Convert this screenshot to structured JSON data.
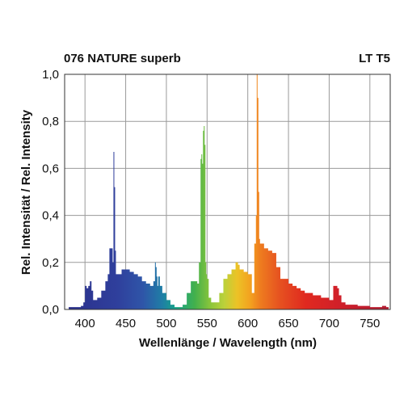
{
  "chart_data": {
    "type": "area",
    "title": "076 NATURE superb",
    "subtitle": "LT T5",
    "xlabel": "Wellenlänge / Wavelength (nm)",
    "ylabel": "Rel. Intensität / Rel. Intensity",
    "xlim": [
      375,
      775
    ],
    "ylim": [
      0,
      1.0
    ],
    "grid": true,
    "x_ticks": [
      400,
      450,
      500,
      550,
      600,
      650,
      700,
      750
    ],
    "y_ticks": [
      0,
      0.2,
      0.4,
      0.6,
      0.8,
      1.0
    ],
    "y_tick_labels": [
      "0,0",
      "0,2",
      "0,4",
      "0,6",
      "0,8",
      "1,0"
    ],
    "series": [
      {
        "x": [
          380,
          385,
          390,
          395,
          398,
          400,
          402,
          404,
          406,
          408,
          410,
          415,
          420,
          425,
          428,
          430,
          432,
          434,
          435,
          436,
          437,
          438,
          440,
          445,
          450,
          455,
          460,
          465,
          470,
          475,
          480,
          484,
          486,
          487,
          488,
          489,
          490,
          492,
          495,
          500,
          505,
          510,
          515,
          520,
          525,
          530,
          535,
          538,
          540,
          542,
          543,
          544,
          545,
          546,
          547,
          548,
          549,
          550,
          552,
          555,
          560,
          565,
          570,
          575,
          580,
          585,
          588,
          590,
          595,
          600,
          605,
          608,
          610,
          611,
          612,
          613,
          614,
          615,
          620,
          625,
          630,
          635,
          640,
          645,
          650,
          655,
          660,
          665,
          670,
          675,
          680,
          685,
          690,
          695,
          700,
          705,
          708,
          710,
          712,
          715,
          720,
          725,
          730,
          735,
          740,
          745,
          750,
          755,
          760,
          765,
          770
        ],
        "y": [
          0.01,
          0.01,
          0.01,
          0.015,
          0.03,
          0.1,
          0.09,
          0.1,
          0.12,
          0.08,
          0.04,
          0.05,
          0.08,
          0.12,
          0.15,
          0.26,
          0.26,
          0.2,
          0.67,
          0.52,
          0.25,
          0.15,
          0.15,
          0.17,
          0.17,
          0.16,
          0.15,
          0.14,
          0.12,
          0.11,
          0.1,
          0.12,
          0.2,
          0.18,
          0.14,
          0.1,
          0.14,
          0.1,
          0.07,
          0.04,
          0.02,
          0.01,
          0.01,
          0.02,
          0.07,
          0.12,
          0.12,
          0.11,
          0.2,
          0.64,
          0.66,
          0.62,
          0.76,
          0.78,
          0.7,
          0.2,
          0.15,
          0.13,
          0.05,
          0.03,
          0.03,
          0.07,
          0.13,
          0.15,
          0.17,
          0.2,
          0.19,
          0.17,
          0.16,
          0.15,
          0.07,
          0.28,
          0.4,
          1.0,
          0.9,
          0.5,
          0.3,
          0.28,
          0.26,
          0.25,
          0.24,
          0.18,
          0.13,
          0.13,
          0.11,
          0.1,
          0.09,
          0.08,
          0.07,
          0.07,
          0.06,
          0.06,
          0.05,
          0.05,
          0.04,
          0.1,
          0.1,
          0.09,
          0.06,
          0.03,
          0.02,
          0.02,
          0.02,
          0.015,
          0.015,
          0.015,
          0.01,
          0.01,
          0.01,
          0.015,
          0.01
        ]
      }
    ]
  }
}
